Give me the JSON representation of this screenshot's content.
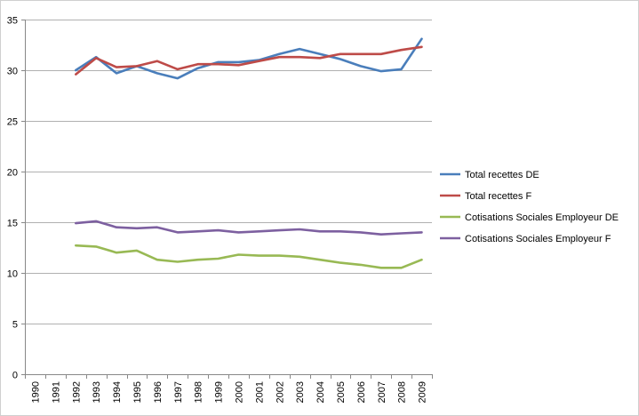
{
  "chart_data": {
    "type": "line",
    "title": "",
    "xlabel": "",
    "ylabel": "",
    "categories": [
      "1990",
      "1991",
      "1992",
      "1993",
      "1994",
      "1995",
      "1996",
      "1997",
      "1998",
      "1999",
      "2000",
      "2001",
      "2002",
      "2003",
      "2004",
      "2005",
      "2006",
      "2007",
      "2008",
      "2009"
    ],
    "ylim": [
      0,
      35
    ],
    "yticks": [
      "0",
      "5",
      "10",
      "15",
      "20",
      "25",
      "30",
      "35"
    ],
    "grid": "horizontal",
    "legend_position": "right",
    "series": [
      {
        "name": "Total recettes DE",
        "color": "#4a7ebb",
        "values": [
          null,
          null,
          30.0,
          31.3,
          29.7,
          30.4,
          29.7,
          29.2,
          30.2,
          30.8,
          30.8,
          31.0,
          31.6,
          32.1,
          31.6,
          31.1,
          30.4,
          29.9,
          30.1,
          33.1
        ]
      },
      {
        "name": "Total recettes F",
        "color": "#be4b48",
        "values": [
          null,
          null,
          29.6,
          31.2,
          30.3,
          30.4,
          30.9,
          30.1,
          30.6,
          30.6,
          30.5,
          30.9,
          31.3,
          31.3,
          31.2,
          31.6,
          31.6,
          31.6,
          32.0,
          32.3
        ]
      },
      {
        "name": "Cotisations Sociales Employeur DE",
        "color": "#98b954",
        "values": [
          null,
          null,
          12.7,
          12.6,
          12.0,
          12.2,
          11.3,
          11.1,
          11.3,
          11.4,
          11.8,
          11.7,
          11.7,
          11.6,
          11.3,
          11.0,
          10.8,
          10.5,
          10.5,
          11.3
        ]
      },
      {
        "name": "Cotisations Sociales Employeur  F",
        "color": "#7d60a0",
        "values": [
          null,
          null,
          14.9,
          15.1,
          14.5,
          14.4,
          14.5,
          14.0,
          14.1,
          14.2,
          14.0,
          14.1,
          14.2,
          14.3,
          14.1,
          14.1,
          14.0,
          13.8,
          13.9,
          14.0
        ]
      }
    ]
  }
}
